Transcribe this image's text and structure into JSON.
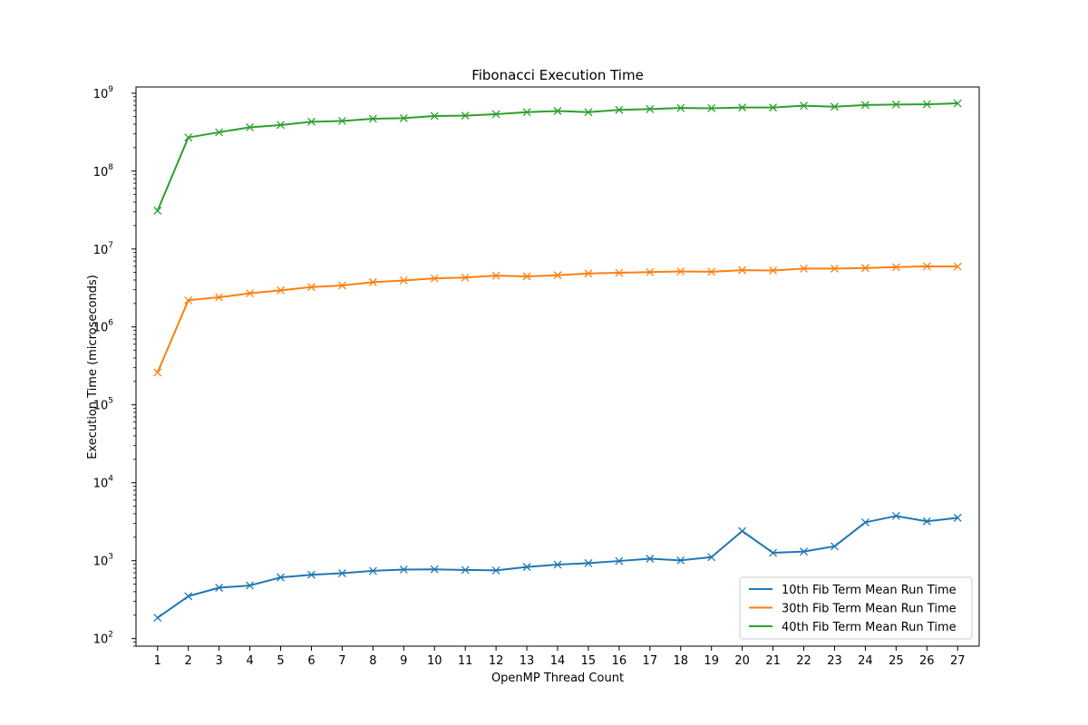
{
  "chart_data": {
    "type": "line",
    "title": "Fibonacci Execution Time",
    "xlabel": "OpenMP Thread Count",
    "ylabel": "Execution Time (microseconds)",
    "y_scale": "log",
    "ylim": [
      80,
      1200000000
    ],
    "xlim": [
      0.3,
      27.7
    ],
    "grid": false,
    "legend_position": "lower-right",
    "x": [
      1,
      2,
      3,
      4,
      5,
      6,
      7,
      8,
      9,
      10,
      11,
      12,
      13,
      14,
      15,
      16,
      17,
      18,
      19,
      20,
      21,
      22,
      23,
      24,
      25,
      26,
      27
    ],
    "x_tick_labels": [
      "1",
      "2",
      "3",
      "4",
      "5",
      "6",
      "7",
      "8",
      "9",
      "10",
      "11",
      "12",
      "13",
      "14",
      "15",
      "16",
      "17",
      "18",
      "19",
      "20",
      "21",
      "22",
      "23",
      "24",
      "25",
      "26",
      "27"
    ],
    "y_ticks": [
      {
        "value": 100,
        "base": "10",
        "exp": "2"
      },
      {
        "value": 1000,
        "base": "10",
        "exp": "3"
      },
      {
        "value": 10000,
        "base": "10",
        "exp": "4"
      },
      {
        "value": 100000,
        "base": "10",
        "exp": "5"
      },
      {
        "value": 1000000,
        "base": "10",
        "exp": "6"
      },
      {
        "value": 10000000,
        "base": "10",
        "exp": "7"
      },
      {
        "value": 100000000,
        "base": "10",
        "exp": "8"
      },
      {
        "value": 1000000000,
        "base": "10",
        "exp": "9"
      }
    ],
    "series": [
      {
        "name": "10th Fib Term Mean Run Time",
        "color": "#1f77b4",
        "marker": "x",
        "values": [
          185,
          350,
          450,
          480,
          610,
          660,
          690,
          740,
          770,
          775,
          760,
          750,
          830,
          890,
          930,
          990,
          1060,
          1010,
          1110,
          2400,
          1260,
          1310,
          1530,
          3100,
          3750,
          3200,
          3550
        ]
      },
      {
        "name": "30th Fib Term Mean Run Time",
        "color": "#ff7f0e",
        "marker": "x",
        "values": [
          260000,
          2200000,
          2400000,
          2700000,
          2950000,
          3250000,
          3400000,
          3750000,
          3950000,
          4200000,
          4300000,
          4550000,
          4450000,
          4600000,
          4850000,
          4950000,
          5050000,
          5150000,
          5100000,
          5350000,
          5300000,
          5600000,
          5600000,
          5700000,
          5850000,
          6000000,
          5950000
        ]
      },
      {
        "name": "40th Fib Term Mean Run Time",
        "color": "#2ca02c",
        "marker": "x",
        "values": [
          31000000,
          270000000,
          315000000,
          365000000,
          390000000,
          430000000,
          440000000,
          470000000,
          478000000,
          510000000,
          515000000,
          538000000,
          570000000,
          590000000,
          570000000,
          610000000,
          625000000,
          645000000,
          640000000,
          655000000,
          655000000,
          690000000,
          670000000,
          705000000,
          715000000,
          720000000,
          740000000
        ]
      }
    ]
  }
}
